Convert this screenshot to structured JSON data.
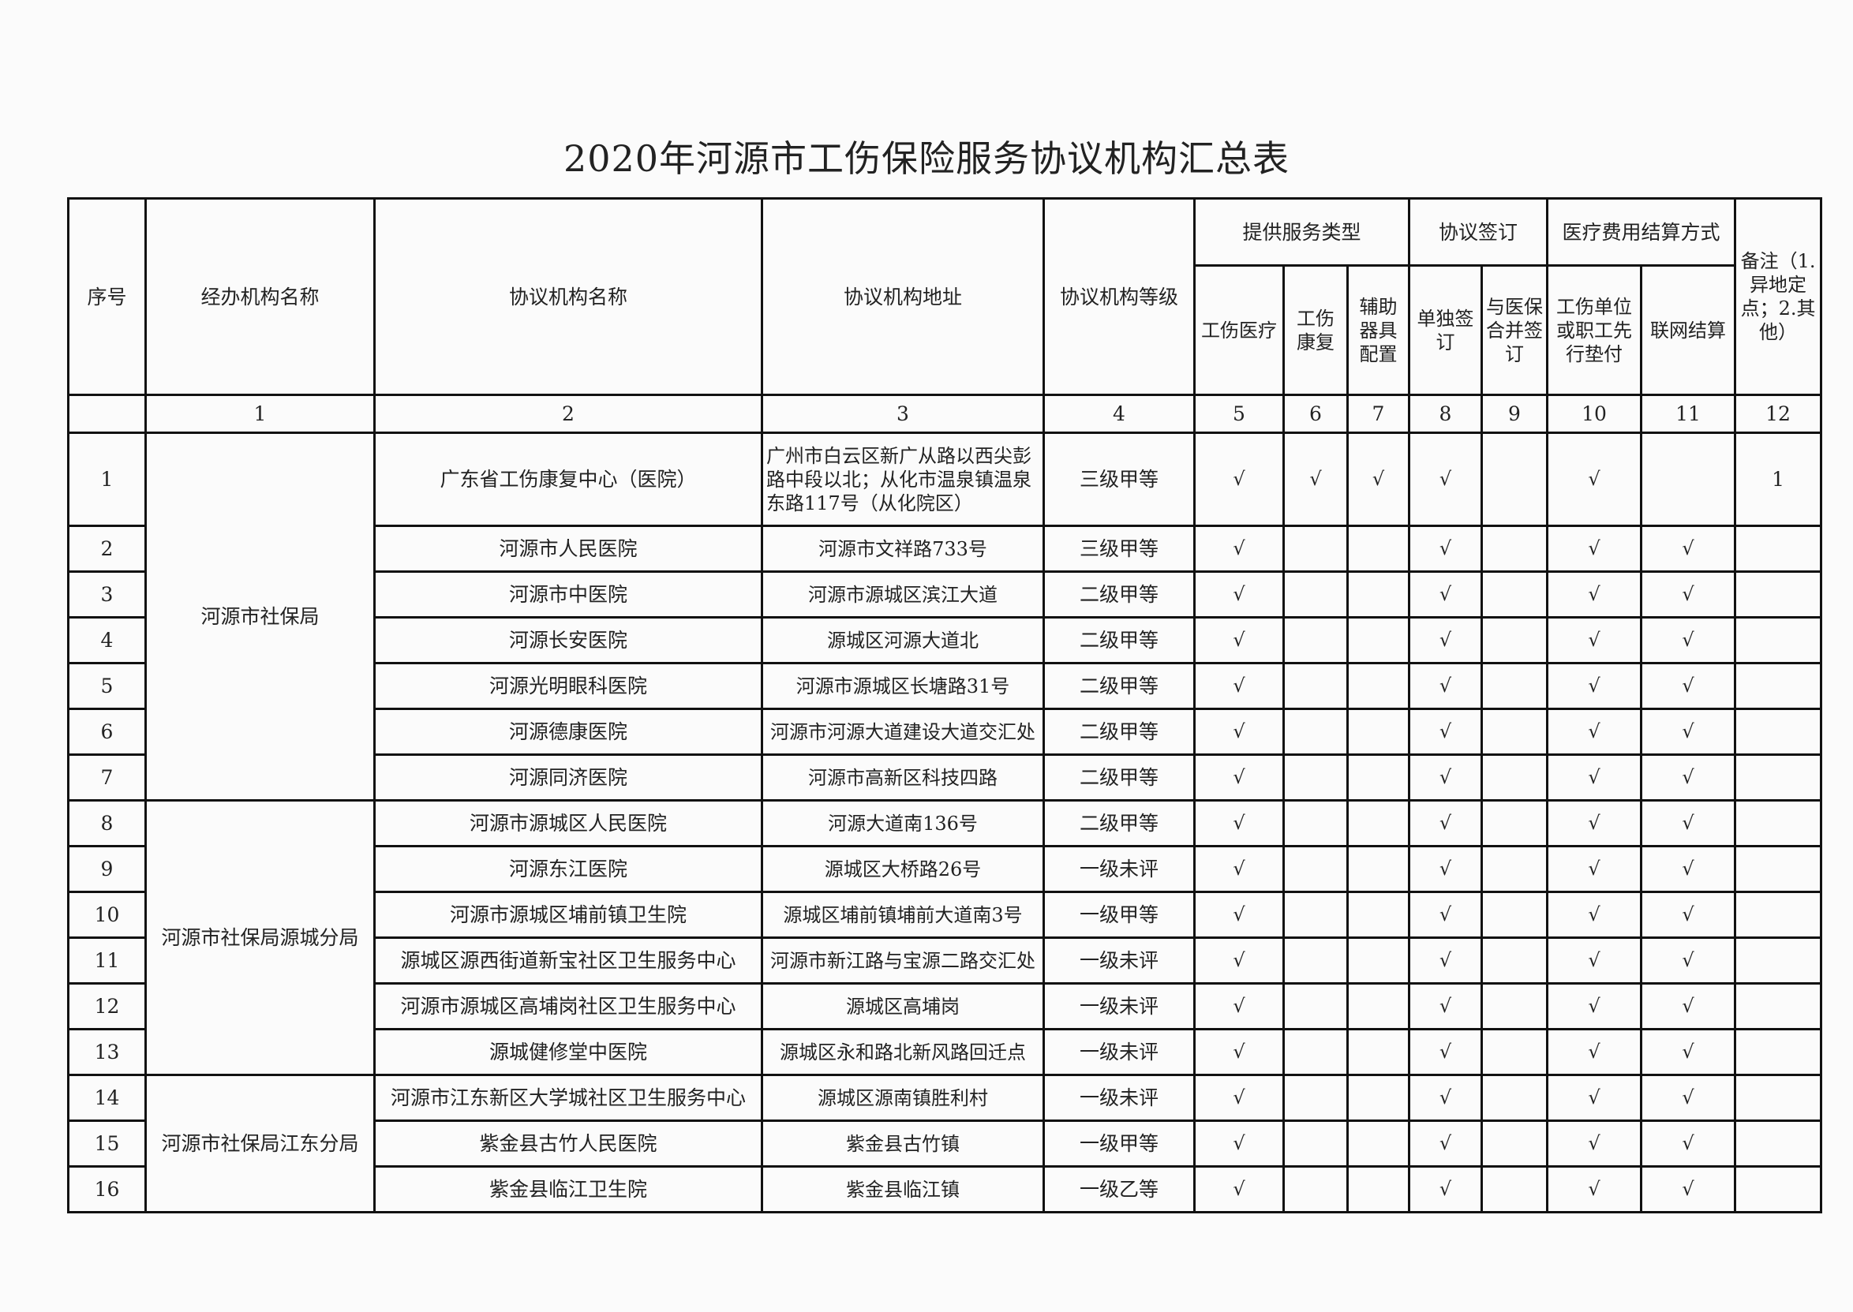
{
  "title": "2020年河源市工伤保险服务协议机构汇总表",
  "headers": {
    "seq": "序号",
    "agency": "经办机构名称",
    "institution": "协议机构名称",
    "address": "协议机构地址",
    "level": "协议机构等级",
    "service_group": "提供服务类型",
    "service_medical": "工伤医疗",
    "service_rehab": "工伤康复",
    "service_aids": "辅助器具配置",
    "sign_group": "协议签订",
    "sign_separate": "单独签订",
    "sign_combined": "与医保合并签订",
    "settle_group": "医疗费用结算方式",
    "settle_advance": "工伤单位或职工先行垫付",
    "settle_network": "联网结算",
    "remark": "备注（1.异地定点；2.其他）"
  },
  "column_numbers": [
    "1",
    "2",
    "3",
    "4",
    "5",
    "6",
    "7",
    "8",
    "9",
    "10",
    "11",
    "12"
  ],
  "agencies": [
    {
      "name": "河源市社保局",
      "rows": 7
    },
    {
      "name": "河源市社保局源城分局",
      "rows": 6
    },
    {
      "name": "河源市社保局江东分局",
      "rows": 3
    }
  ],
  "rows": [
    {
      "seq": "1",
      "name": "广东省工伤康复中心（医院）",
      "address": "广州市白云区新广从路以西尖彭路中段以北；从化市温泉镇温泉东路117号（从化院区）",
      "level": "三级甲等",
      "c5": "√",
      "c6": "√",
      "c7": "√",
      "c8": "√",
      "c9": "",
      "c10": "√",
      "c11": "",
      "c12": "1"
    },
    {
      "seq": "2",
      "name": "河源市人民医院",
      "address": "河源市文祥路733号",
      "level": "三级甲等",
      "c5": "√",
      "c6": "",
      "c7": "",
      "c8": "√",
      "c9": "",
      "c10": "√",
      "c11": "√",
      "c12": ""
    },
    {
      "seq": "3",
      "name": "河源市中医院",
      "address": "河源市源城区滨江大道",
      "level": "二级甲等",
      "c5": "√",
      "c6": "",
      "c7": "",
      "c8": "√",
      "c9": "",
      "c10": "√",
      "c11": "√",
      "c12": ""
    },
    {
      "seq": "4",
      "name": "河源长安医院",
      "address": "源城区河源大道北",
      "level": "二级甲等",
      "c5": "√",
      "c6": "",
      "c7": "",
      "c8": "√",
      "c9": "",
      "c10": "√",
      "c11": "√",
      "c12": ""
    },
    {
      "seq": "5",
      "name": "河源光明眼科医院",
      "address": "河源市源城区长塘路31号",
      "level": "二级甲等",
      "c5": "√",
      "c6": "",
      "c7": "",
      "c8": "√",
      "c9": "",
      "c10": "√",
      "c11": "√",
      "c12": ""
    },
    {
      "seq": "6",
      "name": "河源德康医院",
      "address": "河源市河源大道建设大道交汇处",
      "level": "二级甲等",
      "c5": "√",
      "c6": "",
      "c7": "",
      "c8": "√",
      "c9": "",
      "c10": "√",
      "c11": "√",
      "c12": ""
    },
    {
      "seq": "7",
      "name": "河源同济医院",
      "address": "河源市高新区科技四路",
      "level": "二级甲等",
      "c5": "√",
      "c6": "",
      "c7": "",
      "c8": "√",
      "c9": "",
      "c10": "√",
      "c11": "√",
      "c12": ""
    },
    {
      "seq": "8",
      "name": "河源市源城区人民医院",
      "address": "河源大道南136号",
      "level": "二级甲等",
      "c5": "√",
      "c6": "",
      "c7": "",
      "c8": "√",
      "c9": "",
      "c10": "√",
      "c11": "√",
      "c12": ""
    },
    {
      "seq": "9",
      "name": "河源东江医院",
      "address": "源城区大桥路26号",
      "level": "一级未评",
      "c5": "√",
      "c6": "",
      "c7": "",
      "c8": "√",
      "c9": "",
      "c10": "√",
      "c11": "√",
      "c12": ""
    },
    {
      "seq": "10",
      "name": "河源市源城区埔前镇卫生院",
      "address": "源城区埔前镇埔前大道南3号",
      "level": "一级甲等",
      "c5": "√",
      "c6": "",
      "c7": "",
      "c8": "√",
      "c9": "",
      "c10": "√",
      "c11": "√",
      "c12": ""
    },
    {
      "seq": "11",
      "name": "源城区源西街道新宝社区卫生服务中心",
      "address": "河源市新江路与宝源二路交汇处",
      "level": "一级未评",
      "c5": "√",
      "c6": "",
      "c7": "",
      "c8": "√",
      "c9": "",
      "c10": "√",
      "c11": "√",
      "c12": ""
    },
    {
      "seq": "12",
      "name": "河源市源城区高埔岗社区卫生服务中心",
      "address": "源城区高埔岗",
      "level": "一级未评",
      "c5": "√",
      "c6": "",
      "c7": "",
      "c8": "√",
      "c9": "",
      "c10": "√",
      "c11": "√",
      "c12": ""
    },
    {
      "seq": "13",
      "name": "源城健修堂中医院",
      "address": "源城区永和路北新风路回迁点",
      "level": "一级未评",
      "c5": "√",
      "c6": "",
      "c7": "",
      "c8": "√",
      "c9": "",
      "c10": "√",
      "c11": "√",
      "c12": ""
    },
    {
      "seq": "14",
      "name": "河源市江东新区大学城社区卫生服务中心",
      "address": "源城区源南镇胜利村",
      "level": "一级未评",
      "c5": "√",
      "c6": "",
      "c7": "",
      "c8": "√",
      "c9": "",
      "c10": "√",
      "c11": "√",
      "c12": ""
    },
    {
      "seq": "15",
      "name": "紫金县古竹人民医院",
      "address": "紫金县古竹镇",
      "level": "一级甲等",
      "c5": "√",
      "c6": "",
      "c7": "",
      "c8": "√",
      "c9": "",
      "c10": "√",
      "c11": "√",
      "c12": ""
    },
    {
      "seq": "16",
      "name": "紫金县临江卫生院",
      "address": "紫金县临江镇",
      "level": "一级乙等",
      "c5": "√",
      "c6": "",
      "c7": "",
      "c8": "√",
      "c9": "",
      "c10": "√",
      "c11": "√",
      "c12": ""
    }
  ]
}
